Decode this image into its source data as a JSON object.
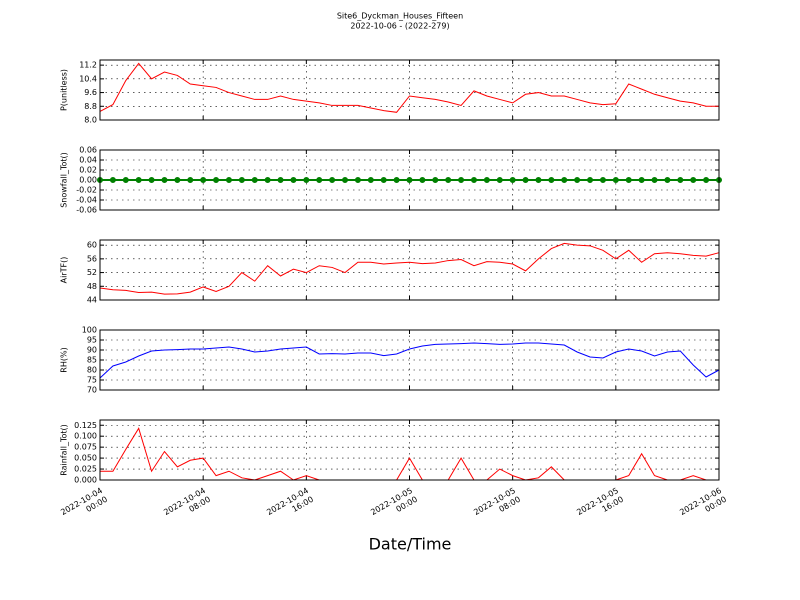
{
  "chart_data": [
    {
      "type": "line",
      "title": "Site6_Dyckman_Houses_Fifteen",
      "subtitle": "2022-10-06 - (2022-279)",
      "y_label": "P(unitless)",
      "color": "#ff0000",
      "x": [
        "2022-10-04 00:00",
        "2022-10-04 01:00",
        "2022-10-04 02:00",
        "2022-10-04 03:00",
        "2022-10-04 04:00",
        "2022-10-04 05:00",
        "2022-10-04 06:00",
        "2022-10-04 07:00",
        "2022-10-04 08:00",
        "2022-10-04 09:00",
        "2022-10-04 10:00",
        "2022-10-04 11:00",
        "2022-10-04 12:00",
        "2022-10-04 13:00",
        "2022-10-04 14:00",
        "2022-10-04 15:00",
        "2022-10-04 16:00",
        "2022-10-04 17:00",
        "2022-10-04 18:00",
        "2022-10-04 19:00",
        "2022-10-04 20:00",
        "2022-10-04 21:00",
        "2022-10-04 22:00",
        "2022-10-04 23:00",
        "2022-10-05 00:00",
        "2022-10-05 01:00",
        "2022-10-05 02:00",
        "2022-10-05 03:00",
        "2022-10-05 04:00",
        "2022-10-05 05:00",
        "2022-10-05 06:00",
        "2022-10-05 07:00",
        "2022-10-05 08:00",
        "2022-10-05 09:00",
        "2022-10-05 10:00",
        "2022-10-05 11:00",
        "2022-10-05 12:00",
        "2022-10-05 13:00",
        "2022-10-05 14:00",
        "2022-10-05 15:00",
        "2022-10-05 16:00",
        "2022-10-05 17:00",
        "2022-10-05 18:00",
        "2022-10-05 19:00",
        "2022-10-05 20:00",
        "2022-10-05 21:00",
        "2022-10-05 22:00",
        "2022-10-05 23:00",
        "2022-10-06 00:00"
      ],
      "values": [
        8.5,
        8.9,
        10.3,
        11.3,
        10.4,
        10.8,
        10.6,
        10.1,
        10.0,
        9.9,
        9.6,
        9.4,
        9.2,
        9.2,
        9.4,
        9.2,
        9.1,
        9.0,
        8.85,
        8.85,
        8.85,
        8.7,
        8.55,
        8.45,
        9.4,
        9.3,
        9.2,
        9.05,
        8.85,
        9.7,
        9.4,
        9.2,
        9.0,
        9.5,
        9.6,
        9.4,
        9.4,
        9.2,
        9.0,
        8.9,
        8.95,
        10.1,
        9.8,
        9.5,
        9.3,
        9.1,
        9.0,
        8.8,
        8.8
      ],
      "xlim": [
        "2022-10-04 00:00",
        "2022-10-06 00:00"
      ],
      "xticks": [
        "2022-10-04 00:00",
        "2022-10-04 08:00",
        "2022-10-04 16:00",
        "2022-10-05 00:00",
        "2022-10-05 08:00",
        "2022-10-05 16:00",
        "2022-10-06 00:00"
      ],
      "ylim": [
        8.0,
        11.5
      ],
      "yticks": [
        {
          "value": 8,
          "label": "8.0"
        },
        8.8,
        9.6,
        10.4,
        11.2
      ],
      "grid": true
    },
    {
      "type": "line",
      "y_label": "Snowfall_Tot()",
      "color": "#008000",
      "marker": true,
      "x": [
        "2022-10-04 00:00",
        "2022-10-04 01:00",
        "2022-10-04 02:00",
        "2022-10-04 03:00",
        "2022-10-04 04:00",
        "2022-10-04 05:00",
        "2022-10-04 06:00",
        "2022-10-04 07:00",
        "2022-10-04 08:00",
        "2022-10-04 09:00",
        "2022-10-04 10:00",
        "2022-10-04 11:00",
        "2022-10-04 12:00",
        "2022-10-04 13:00",
        "2022-10-04 14:00",
        "2022-10-04 15:00",
        "2022-10-04 16:00",
        "2022-10-04 17:00",
        "2022-10-04 18:00",
        "2022-10-04 19:00",
        "2022-10-04 20:00",
        "2022-10-04 21:00",
        "2022-10-04 22:00",
        "2022-10-04 23:00",
        "2022-10-05 00:00",
        "2022-10-05 01:00",
        "2022-10-05 02:00",
        "2022-10-05 03:00",
        "2022-10-05 04:00",
        "2022-10-05 05:00",
        "2022-10-05 06:00",
        "2022-10-05 07:00",
        "2022-10-05 08:00",
        "2022-10-05 09:00",
        "2022-10-05 10:00",
        "2022-10-05 11:00",
        "2022-10-05 12:00",
        "2022-10-05 13:00",
        "2022-10-05 14:00",
        "2022-10-05 15:00",
        "2022-10-05 16:00",
        "2022-10-05 17:00",
        "2022-10-05 18:00",
        "2022-10-05 19:00",
        "2022-10-05 20:00",
        "2022-10-05 21:00",
        "2022-10-05 22:00",
        "2022-10-05 23:00",
        "2022-10-06 00:00"
      ],
      "values": [
        0,
        0,
        0,
        0,
        0,
        0,
        0,
        0,
        0,
        0,
        0,
        0,
        0,
        0,
        0,
        0,
        0,
        0,
        0,
        0,
        0,
        0,
        0,
        0,
        0,
        0,
        0,
        0,
        0,
        0,
        0,
        0,
        0,
        0,
        0,
        0,
        0,
        0,
        0,
        0,
        0,
        0,
        0,
        0,
        0,
        0,
        0,
        0,
        0
      ],
      "xlim": [
        "2022-10-04 00:00",
        "2022-10-06 00:00"
      ],
      "xticks": [
        "2022-10-04 00:00",
        "2022-10-04 08:00",
        "2022-10-04 16:00",
        "2022-10-05 00:00",
        "2022-10-05 08:00",
        "2022-10-05 16:00",
        "2022-10-06 00:00"
      ],
      "ylim": [
        -0.06,
        0.06
      ],
      "yticks": [
        -0.06,
        -0.04,
        -0.02,
        {
          "value": 0,
          "label": "0.00"
        },
        0.02,
        0.04,
        0.06
      ],
      "grid": true
    },
    {
      "type": "line",
      "y_label": "AirTF()",
      "color": "#ff0000",
      "x": [
        "2022-10-04 00:00",
        "2022-10-04 01:00",
        "2022-10-04 02:00",
        "2022-10-04 03:00",
        "2022-10-04 04:00",
        "2022-10-04 05:00",
        "2022-10-04 06:00",
        "2022-10-04 07:00",
        "2022-10-04 08:00",
        "2022-10-04 09:00",
        "2022-10-04 10:00",
        "2022-10-04 11:00",
        "2022-10-04 12:00",
        "2022-10-04 13:00",
        "2022-10-04 14:00",
        "2022-10-04 15:00",
        "2022-10-04 16:00",
        "2022-10-04 17:00",
        "2022-10-04 18:00",
        "2022-10-04 19:00",
        "2022-10-04 20:00",
        "2022-10-04 21:00",
        "2022-10-04 22:00",
        "2022-10-04 23:00",
        "2022-10-05 00:00",
        "2022-10-05 01:00",
        "2022-10-05 02:00",
        "2022-10-05 03:00",
        "2022-10-05 04:00",
        "2022-10-05 05:00",
        "2022-10-05 06:00",
        "2022-10-05 07:00",
        "2022-10-05 08:00",
        "2022-10-05 09:00",
        "2022-10-05 10:00",
        "2022-10-05 11:00",
        "2022-10-05 12:00",
        "2022-10-05 13:00",
        "2022-10-05 14:00",
        "2022-10-05 15:00",
        "2022-10-05 16:00",
        "2022-10-05 17:00",
        "2022-10-05 18:00",
        "2022-10-05 19:00",
        "2022-10-05 20:00",
        "2022-10-05 21:00",
        "2022-10-05 22:00",
        "2022-10-05 23:00",
        "2022-10-06 00:00"
      ],
      "values": [
        47.5,
        47,
        46.8,
        46.2,
        46.3,
        45.7,
        45.8,
        46.3,
        47.8,
        46.5,
        48,
        52,
        49.5,
        54,
        51,
        53,
        52,
        54,
        53.5,
        52,
        55,
        55,
        54.5,
        54.8,
        55,
        54.6,
        54.8,
        55.5,
        55.8,
        54,
        55.2,
        55,
        54.5,
        52.5,
        56,
        59,
        60.5,
        60,
        59.8,
        58.5,
        56,
        58.5,
        55,
        57.5,
        57.8,
        57.5,
        57,
        56.8,
        57.8
      ],
      "xlim": [
        "2022-10-04 00:00",
        "2022-10-06 00:00"
      ],
      "xticks": [
        "2022-10-04 00:00",
        "2022-10-04 08:00",
        "2022-10-04 16:00",
        "2022-10-05 00:00",
        "2022-10-05 08:00",
        "2022-10-05 16:00",
        "2022-10-06 00:00"
      ],
      "ylim": [
        44,
        61.5
      ],
      "yticks": [
        44,
        48,
        52,
        56,
        60
      ],
      "grid": true
    },
    {
      "type": "line",
      "y_label": "RH(%)",
      "color": "#0000ff",
      "x": [
        "2022-10-04 00:00",
        "2022-10-04 01:00",
        "2022-10-04 02:00",
        "2022-10-04 03:00",
        "2022-10-04 04:00",
        "2022-10-04 05:00",
        "2022-10-04 06:00",
        "2022-10-04 07:00",
        "2022-10-04 08:00",
        "2022-10-04 09:00",
        "2022-10-04 10:00",
        "2022-10-04 11:00",
        "2022-10-04 12:00",
        "2022-10-04 13:00",
        "2022-10-04 14:00",
        "2022-10-04 15:00",
        "2022-10-04 16:00",
        "2022-10-04 17:00",
        "2022-10-04 18:00",
        "2022-10-04 19:00",
        "2022-10-04 20:00",
        "2022-10-04 21:00",
        "2022-10-04 22:00",
        "2022-10-04 23:00",
        "2022-10-05 00:00",
        "2022-10-05 01:00",
        "2022-10-05 02:00",
        "2022-10-05 03:00",
        "2022-10-05 04:00",
        "2022-10-05 05:00",
        "2022-10-05 06:00",
        "2022-10-05 07:00",
        "2022-10-05 08:00",
        "2022-10-05 09:00",
        "2022-10-05 10:00",
        "2022-10-05 11:00",
        "2022-10-05 12:00",
        "2022-10-05 13:00",
        "2022-10-05 14:00",
        "2022-10-05 15:00",
        "2022-10-05 16:00",
        "2022-10-05 17:00",
        "2022-10-05 18:00",
        "2022-10-05 19:00",
        "2022-10-05 20:00",
        "2022-10-05 21:00",
        "2022-10-05 22:00",
        "2022-10-05 23:00",
        "2022-10-06 00:00"
      ],
      "values": [
        76,
        82,
        84,
        87,
        89.5,
        90,
        90.2,
        90.5,
        90.5,
        91,
        91.5,
        90.5,
        89,
        89.5,
        90.5,
        91,
        91.5,
        88,
        88.2,
        88,
        88.5,
        88.5,
        87.2,
        88,
        90.5,
        92,
        92.8,
        93,
        93.2,
        93.5,
        93.2,
        92.8,
        93,
        93.5,
        93.5,
        93,
        92.5,
        89,
        86.5,
        86,
        89,
        90.5,
        89.5,
        87,
        89,
        89.5,
        82.5,
        76.5,
        80
      ],
      "xlim": [
        "2022-10-04 00:00",
        "2022-10-06 00:00"
      ],
      "xticks": [
        "2022-10-04 00:00",
        "2022-10-04 08:00",
        "2022-10-04 16:00",
        "2022-10-05 00:00",
        "2022-10-05 08:00",
        "2022-10-05 16:00",
        "2022-10-06 00:00"
      ],
      "ylim": [
        70,
        100
      ],
      "yticks": [
        70,
        75,
        80,
        85,
        90,
        95,
        100
      ],
      "grid": true
    },
    {
      "type": "line",
      "y_label": "Rainfall_Tot()",
      "x_label": "Date/Time",
      "color": "#ff0000",
      "x": [
        "2022-10-04 00:00",
        "2022-10-04 01:00",
        "2022-10-04 02:00",
        "2022-10-04 03:00",
        "2022-10-04 04:00",
        "2022-10-04 05:00",
        "2022-10-04 06:00",
        "2022-10-04 07:00",
        "2022-10-04 08:00",
        "2022-10-04 09:00",
        "2022-10-04 10:00",
        "2022-10-04 11:00",
        "2022-10-04 12:00",
        "2022-10-04 13:00",
        "2022-10-04 14:00",
        "2022-10-04 15:00",
        "2022-10-04 16:00",
        "2022-10-04 17:00",
        "2022-10-04 18:00",
        "2022-10-04 19:00",
        "2022-10-04 20:00",
        "2022-10-04 21:00",
        "2022-10-04 22:00",
        "2022-10-04 23:00",
        "2022-10-05 00:00",
        "2022-10-05 01:00",
        "2022-10-05 02:00",
        "2022-10-05 03:00",
        "2022-10-05 04:00",
        "2022-10-05 05:00",
        "2022-10-05 06:00",
        "2022-10-05 07:00",
        "2022-10-05 08:00",
        "2022-10-05 09:00",
        "2022-10-05 10:00",
        "2022-10-05 11:00",
        "2022-10-05 12:00",
        "2022-10-05 13:00",
        "2022-10-05 14:00",
        "2022-10-05 15:00",
        "2022-10-05 16:00",
        "2022-10-05 17:00",
        "2022-10-05 18:00",
        "2022-10-05 19:00",
        "2022-10-05 20:00",
        "2022-10-05 21:00",
        "2022-10-05 22:00",
        "2022-10-05 23:00",
        "2022-10-06 00:00"
      ],
      "values": [
        0.02,
        0.02,
        0.07,
        0.118,
        0.02,
        0.065,
        0.03,
        0.045,
        0.05,
        0.01,
        0.02,
        0.005,
        0,
        0.01,
        0.02,
        0,
        0.01,
        0,
        0,
        0,
        0,
        0,
        0,
        0,
        0.05,
        0,
        0,
        0,
        0.05,
        0,
        0,
        0.025,
        0.01,
        0,
        0.005,
        0.03,
        0,
        0,
        0,
        0,
        0,
        0.01,
        0.06,
        0.01,
        0,
        0,
        0.01,
        0,
        0
      ],
      "xlim": [
        "2022-10-04 00:00",
        "2022-10-06 00:00"
      ],
      "xticks": [
        {
          "value": "2022-10-04 00:00",
          "label": "2022-10-04\n00:00"
        },
        {
          "value": "2022-10-04 08:00",
          "label": "2022-10-04\n08:00"
        },
        {
          "value": "2022-10-04 16:00",
          "label": "2022-10-04\n16:00"
        },
        {
          "value": "2022-10-05 00:00",
          "label": "2022-10-05\n00:00"
        },
        {
          "value": "2022-10-05 08:00",
          "label": "2022-10-05\n08:00"
        },
        {
          "value": "2022-10-05 16:00",
          "label": "2022-10-05\n16:00"
        },
        {
          "value": "2022-10-06 00:00",
          "label": "2022-10-06\n00:00"
        }
      ],
      "ylim": [
        0,
        0.137
      ],
      "yticks": [
        {
          "value": 0,
          "label": "0.000"
        },
        0.025,
        {
          "value": 0.05,
          "label": "0.050"
        },
        0.075,
        {
          "value": 0.1,
          "label": "0.100"
        },
        0.125
      ],
      "grid": true
    }
  ]
}
